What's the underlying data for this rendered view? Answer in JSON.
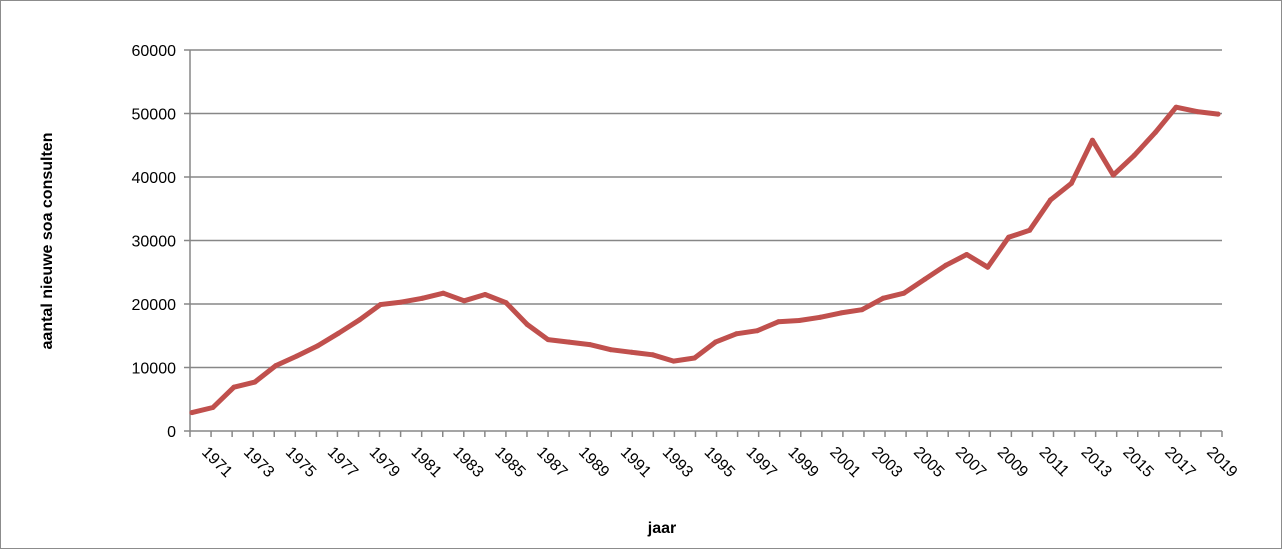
{
  "chart_data": {
    "type": "line",
    "title": "",
    "xlabel": "jaar",
    "ylabel": "aantal nieuwe soa consulten",
    "ylim": [
      0,
      60000
    ],
    "yticks": [
      0,
      10000,
      20000,
      30000,
      40000,
      50000,
      60000
    ],
    "ytick_labels": [
      "0",
      "10000",
      "20000",
      "30000",
      "40000",
      "50000",
      "60000"
    ],
    "xtick_labels": [
      "1971",
      "1973",
      "1975",
      "1977",
      "1979",
      "1981",
      "1983",
      "1985",
      "1987",
      "1989",
      "1991",
      "1993",
      "1995",
      "1997",
      "1999",
      "2001",
      "2003",
      "2005",
      "2007",
      "2009",
      "2011",
      "2013",
      "2015",
      "2017",
      "2019"
    ],
    "grid": true,
    "legend": "none",
    "series_color": "#C0504D",
    "x": [
      1970,
      1971,
      1972,
      1973,
      1974,
      1975,
      1976,
      1977,
      1978,
      1979,
      1980,
      1981,
      1982,
      1983,
      1984,
      1985,
      1986,
      1987,
      1988,
      1989,
      1990,
      1991,
      1992,
      1993,
      1994,
      1995,
      1996,
      1997,
      1998,
      1999,
      2000,
      2001,
      2002,
      2003,
      2004,
      2005,
      2006,
      2007,
      2008,
      2009,
      2010,
      2011,
      2012,
      2013,
      2014,
      2015,
      2016,
      2017,
      2018,
      2019
    ],
    "values": [
      2900,
      3700,
      6900,
      7700,
      10300,
      11800,
      13400,
      15400,
      17500,
      19900,
      20300,
      20900,
      21700,
      20500,
      21500,
      20200,
      16800,
      14400,
      14000,
      13600,
      12800,
      12400,
      12000,
      11000,
      11500,
      14000,
      15300,
      15800,
      17200,
      17400,
      17900,
      18600,
      19100,
      20900,
      21700,
      23900,
      26100,
      27800,
      25800,
      30500,
      31600,
      36400,
      39000,
      45800,
      40300,
      43400,
      47000,
      51000,
      50300,
      49900
    ]
  }
}
